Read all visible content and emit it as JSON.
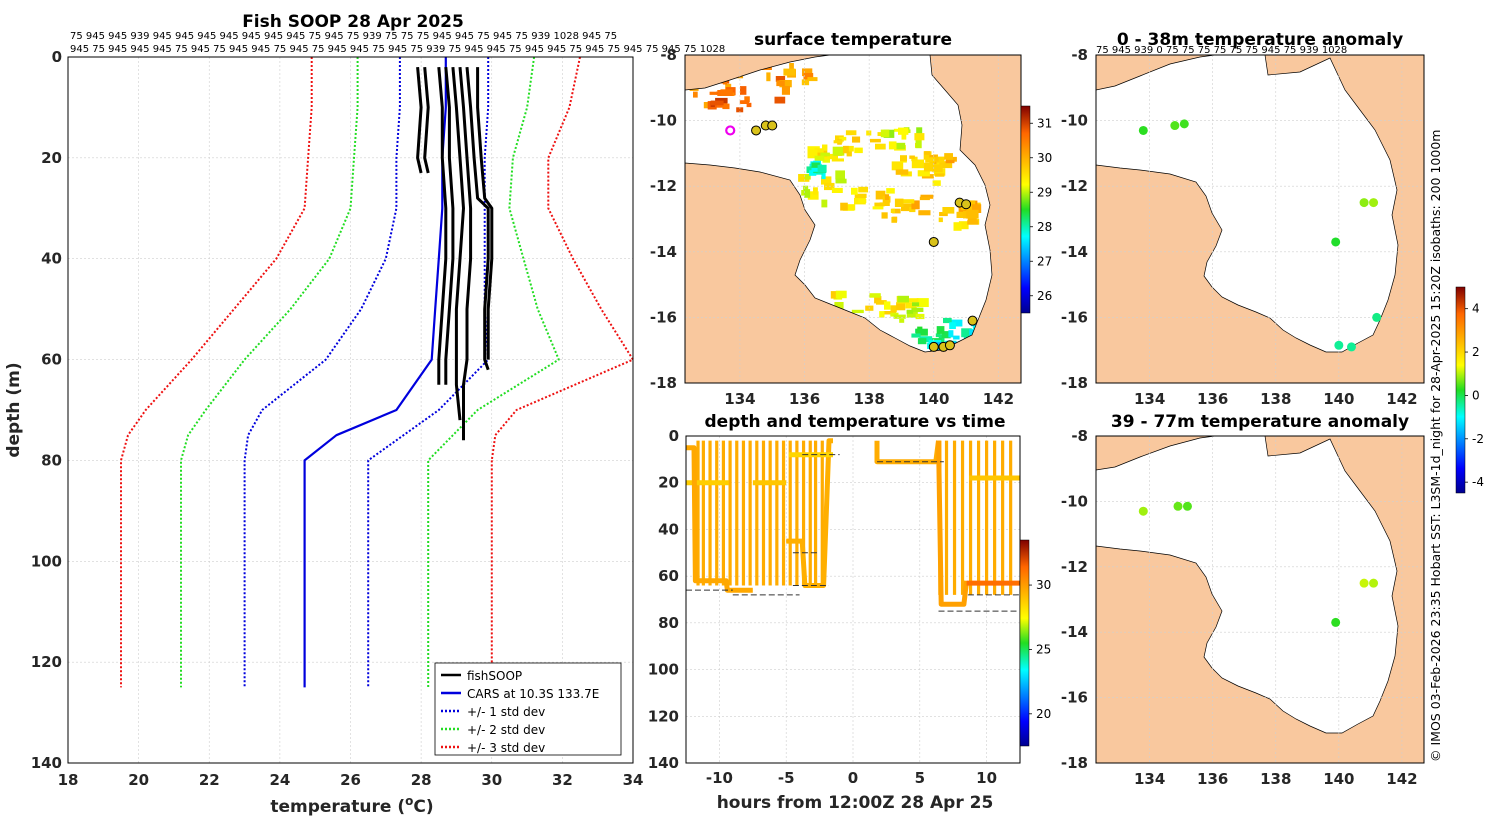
{
  "chart_data": [
    {
      "type": "line",
      "title": "Fish SOOP 28 Apr 2025",
      "xlabel": "temperature (oC)",
      "xlabel_main": "temperature (",
      "xlabel_sup": "o",
      "xlabel_end": "C)",
      "ylabel": "depth (m)",
      "xlim": [
        18,
        34
      ],
      "ylim": [
        0,
        140
      ],
      "xticks": [
        "18",
        "20",
        "22",
        "24",
        "26",
        "28",
        "30",
        "32",
        "34"
      ],
      "yticks": [
        "0",
        "20",
        "40",
        "60",
        "80",
        "100",
        "120",
        "140"
      ],
      "top_labels_row1": "75 945 945 939 945 945 945 945 945 945 945 75 945 75 939 75 75 75 945 945 75 945 75 939 1028 945 75",
      "top_labels_row2": "945 75 945 945 945 75 945 75 945 945 75 945 75 945 945 75 945 75 939 75 945 945 75 945 945 75 945 75 945 75 945 75 1028",
      "legend": [
        "fishSOOP",
        "CARS at 10.3S 133.7E",
        "+/- 1 std dev",
        "+/- 2 std dev",
        "+/- 3 std dev"
      ],
      "colors": {
        "fishsoop": "#000000",
        "cars": "#0000dd",
        "sd1": "#0000dd",
        "sd2": "#22dd22",
        "sd3": "#ee1111"
      },
      "depth": [
        0,
        10,
        20,
        30,
        40,
        50,
        60,
        70,
        75,
        80,
        125
      ],
      "cars_mean": [
        28.7,
        28.7,
        28.6,
        28.6,
        28.5,
        28.4,
        28.3,
        27.3,
        25.6,
        24.7,
        24.7
      ],
      "sd1_low": [
        27.4,
        27.4,
        27.3,
        27.3,
        27.0,
        26.3,
        25.3,
        23.5,
        23.1,
        23.0,
        23.0
      ],
      "sd1_high": [
        29.9,
        29.9,
        29.8,
        29.8,
        29.8,
        29.8,
        29.9,
        28.5,
        27.5,
        26.5,
        26.5
      ],
      "sd2_low": [
        26.2,
        26.2,
        26.1,
        26.0,
        25.4,
        24.3,
        23.0,
        21.9,
        21.4,
        21.2,
        21.2
      ],
      "sd2_high": [
        31.2,
        31.0,
        30.6,
        30.5,
        30.9,
        31.3,
        31.9,
        29.6,
        28.9,
        28.2,
        28.2
      ],
      "sd3_low": [
        24.9,
        24.9,
        24.8,
        24.7,
        23.9,
        22.7,
        21.5,
        20.2,
        19.7,
        19.5,
        19.5
      ],
      "sd3_high": [
        32.5,
        32.2,
        31.6,
        31.6,
        32.3,
        33.1,
        34.0,
        30.7,
        30.1,
        30.0,
        30.0
      ],
      "fish_profiles": [
        {
          "depth": [
            2,
            10,
            20,
            23
          ],
          "temp": [
            27.9,
            28.0,
            27.9,
            28.0
          ]
        },
        {
          "depth": [
            2,
            10,
            20,
            23
          ],
          "temp": [
            28.1,
            28.2,
            28.1,
            28.2
          ]
        },
        {
          "depth": [
            2,
            10,
            20,
            30,
            40,
            50,
            60,
            65
          ],
          "temp": [
            28.5,
            28.6,
            28.6,
            28.7,
            28.7,
            28.6,
            28.5,
            28.5
          ]
        },
        {
          "depth": [
            2,
            10,
            20,
            30,
            40,
            50,
            60,
            65
          ],
          "temp": [
            28.7,
            28.8,
            28.8,
            28.9,
            28.9,
            28.8,
            28.7,
            28.7
          ]
        },
        {
          "depth": [
            2,
            10,
            20,
            30,
            40,
            50,
            60,
            65,
            72
          ],
          "temp": [
            28.9,
            29.0,
            29.1,
            29.2,
            29.1,
            29.0,
            29.0,
            29.0,
            29.1
          ]
        },
        {
          "depth": [
            2,
            10,
            20,
            30,
            40,
            50,
            60,
            65,
            72,
            76
          ],
          "temp": [
            29.1,
            29.2,
            29.3,
            29.4,
            29.4,
            29.3,
            29.3,
            29.2,
            29.2,
            29.2
          ]
        },
        {
          "depth": [
            2,
            10,
            20,
            28,
            30,
            40,
            50,
            60,
            62
          ],
          "temp": [
            29.3,
            29.4,
            29.5,
            29.6,
            29.9,
            29.9,
            29.8,
            29.8,
            29.9
          ]
        },
        {
          "depth": [
            2,
            10,
            20,
            28,
            30,
            40,
            50,
            60
          ],
          "temp": [
            29.6,
            29.6,
            29.7,
            29.8,
            30.0,
            30.0,
            29.9,
            29.9
          ]
        }
      ]
    },
    {
      "type": "heatmap",
      "title": "surface temperature",
      "xticks": [
        "134",
        "136",
        "138",
        "140",
        "142"
      ],
      "yticks": [
        "-8",
        "-10",
        "-12",
        "-14",
        "-16",
        "-18"
      ],
      "xlim": [
        132.3,
        142.7
      ],
      "ylim": [
        -18,
        -8
      ],
      "colorbar_ticks": [
        "31",
        "30",
        "29",
        "28",
        "27",
        "26"
      ],
      "colorbar_range": [
        25.5,
        31.5
      ],
      "dots": [
        {
          "lon": 134.5,
          "lat": -10.3
        },
        {
          "lon": 134.8,
          "lat": -10.15
        },
        {
          "lon": 135.0,
          "lat": -10.15
        },
        {
          "lon": 140.8,
          "lat": -12.5
        },
        {
          "lon": 141.0,
          "lat": -12.55
        },
        {
          "lon": 140.0,
          "lat": -13.7
        },
        {
          "lon": 141.2,
          "lat": -16.1
        },
        {
          "lon": 140.0,
          "lat": -16.9
        },
        {
          "lon": 140.3,
          "lat": -16.9
        },
        {
          "lon": 140.5,
          "lat": -16.85
        }
      ],
      "cars_marker": {
        "lon": 133.7,
        "lat": -10.3
      }
    },
    {
      "type": "heatmap",
      "title": "0 - 38m temperature anomaly",
      "xticks": [
        "134",
        "136",
        "138",
        "140",
        "142"
      ],
      "yticks": [
        "-8",
        "-10",
        "-12",
        "-14",
        "-16",
        "-18"
      ],
      "top_labels": "75 945 939 0 75 75 75 75 75 75 945 75 939 1028",
      "colorbar_ticks": [
        "4",
        "2",
        "0",
        "-2",
        "-4"
      ],
      "colorbar_range": [
        -4.5,
        5
      ],
      "points": [
        {
          "lon": 133.8,
          "lat": -10.3,
          "value": 0.3
        },
        {
          "lon": 134.8,
          "lat": -10.15,
          "value": 0.5
        },
        {
          "lon": 135.1,
          "lat": -10.1,
          "value": 0.4
        },
        {
          "lon": 140.8,
          "lat": -12.5,
          "value": 0.8
        },
        {
          "lon": 141.1,
          "lat": -12.5,
          "value": 0.9
        },
        {
          "lon": 139.9,
          "lat": -13.7,
          "value": 0.2
        },
        {
          "lon": 141.2,
          "lat": -16.0,
          "value": -0.3
        },
        {
          "lon": 140.0,
          "lat": -16.85,
          "value": -0.4
        },
        {
          "lon": 140.4,
          "lat": -16.9,
          "value": -0.4
        }
      ]
    },
    {
      "type": "scatter",
      "title": "depth and temperature vs time",
      "xlabel": "hours from 12:00Z 28 Apr 25",
      "xticks": [
        "-10",
        "-5",
        "0",
        "5",
        "10"
      ],
      "yticks": [
        "0",
        "20",
        "40",
        "60",
        "80",
        "100",
        "120",
        "140"
      ],
      "xlim": [
        -12.5,
        12.5
      ],
      "ylim": [
        0,
        140
      ],
      "colorbar_ticks": [
        "30",
        "25",
        "20"
      ],
      "colorbar_range": [
        17.5,
        33.5
      ],
      "tracks": [
        {
          "t": [
            -12.5,
            -9.3
          ],
          "depth": [
            20,
            20
          ],
          "temp": 28.7
        },
        {
          "t": [
            -12.5,
            -11.9,
            -11.8,
            -9.5,
            -9.4,
            -7.5
          ],
          "depth": [
            5,
            5,
            62,
            62,
            66,
            66
          ],
          "temp": 29.7
        },
        {
          "t": [
            -7.5,
            -5.0
          ],
          "depth": [
            20,
            20
          ],
          "temp": 28.9
        },
        {
          "t": [
            -5.0,
            -3.8,
            -3.6,
            -2.2,
            -1.8,
            -1.5
          ],
          "depth": [
            45,
            45,
            64,
            64,
            2,
            2
          ],
          "temp": 29.5
        },
        {
          "t": [
            -4.8,
            -1.5
          ],
          "depth": [
            8,
            8
          ],
          "temp": 28.5
        },
        {
          "t": [
            1.8,
            1.8,
            6.2,
            6.4
          ],
          "depth": [
            2,
            11,
            11,
            2
          ],
          "temp": 29.6
        },
        {
          "t": [
            6.4,
            6.6,
            8.3,
            8.5
          ],
          "depth": [
            2,
            72,
            72,
            62
          ],
          "temp": 29.9
        },
        {
          "t": [
            8.5,
            12.5
          ],
          "depth": [
            63,
            63
          ],
          "temp": 31.2
        },
        {
          "t": [
            8.7,
            12.5
          ],
          "depth": [
            18,
            18
          ],
          "temp": 28.9
        }
      ]
    },
    {
      "type": "heatmap",
      "title": "39 - 77m temperature anomaly",
      "xticks": [
        "134",
        "136",
        "138",
        "140",
        "142"
      ],
      "yticks": [
        "-8",
        "-10",
        "-12",
        "-14",
        "-16",
        "-18"
      ],
      "points": [
        {
          "lon": 133.8,
          "lat": -10.3,
          "value": 0.9
        },
        {
          "lon": 134.9,
          "lat": -10.15,
          "value": 0.6
        },
        {
          "lon": 135.2,
          "lat": -10.15,
          "value": 0.5
        },
        {
          "lon": 140.8,
          "lat": -12.5,
          "value": 1.1
        },
        {
          "lon": 141.1,
          "lat": -12.5,
          "value": 1.0
        },
        {
          "lon": 139.9,
          "lat": -13.7,
          "value": 0.3
        }
      ]
    }
  ],
  "side_note": "© IMOS 03-Feb-2026 23:35 Hobart SST: L3SM-1d_night for 28-Apr-2025 15:20Z isobaths: 200  1000m"
}
